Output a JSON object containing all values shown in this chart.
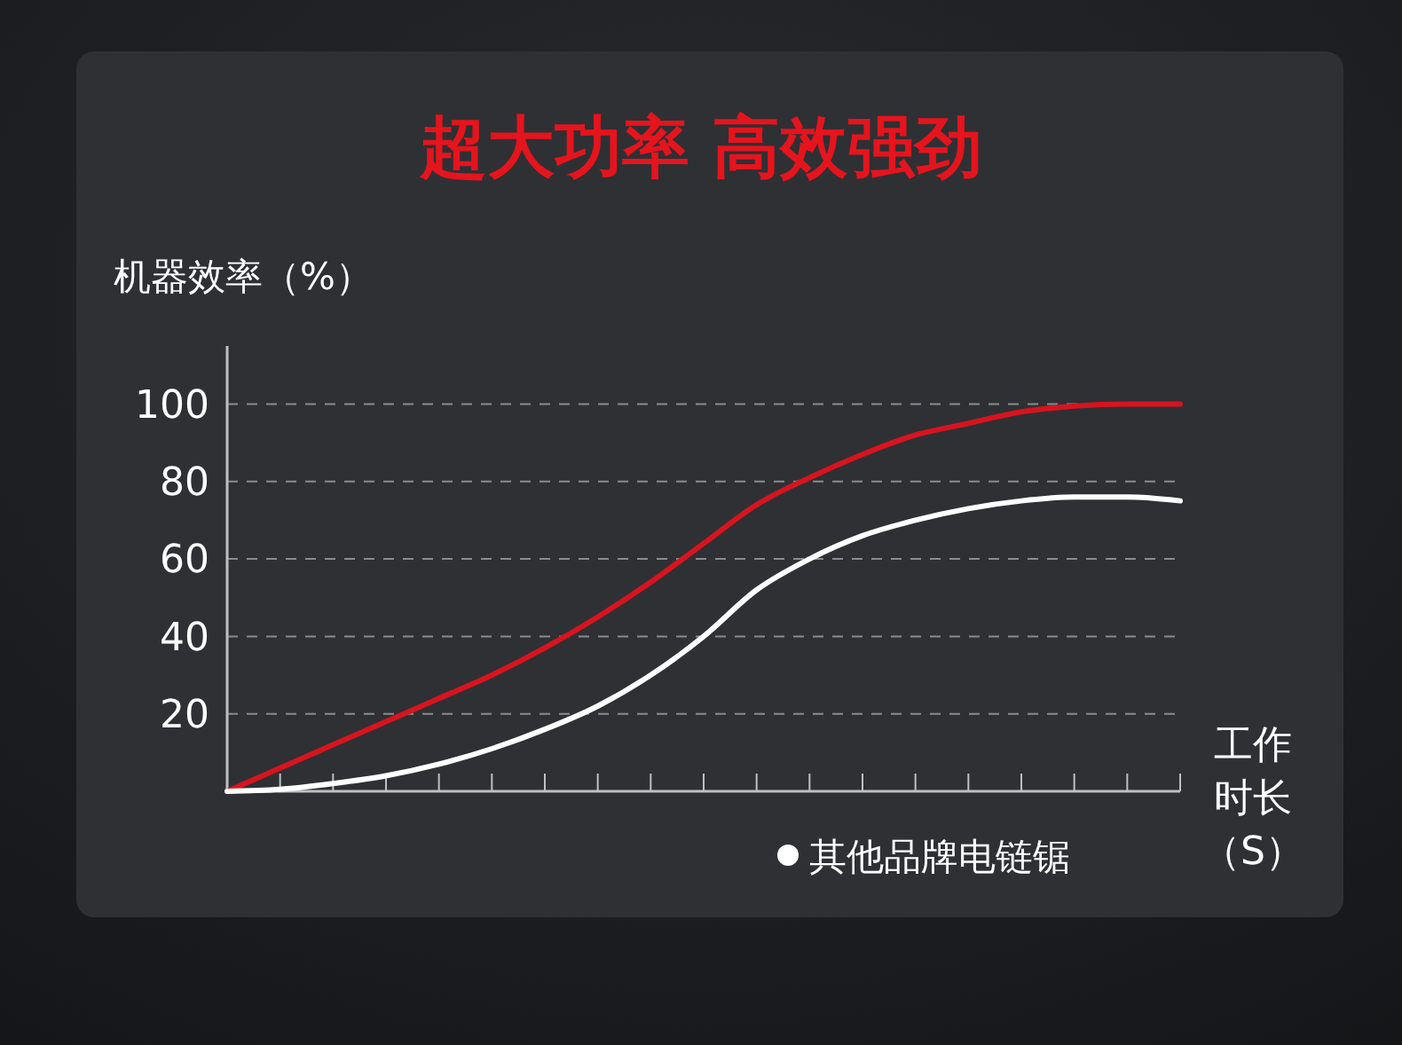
{
  "chart_data": {
    "type": "line",
    "title": "超大功率 高效强劲",
    "ylabel": "机器效率（%）",
    "xlabel": "工作时长（S）",
    "categories": [
      null,
      null,
      null,
      null,
      null,
      null,
      null,
      null,
      null,
      null,
      null,
      null,
      null,
      null,
      null,
      null,
      null,
      null,
      null
    ],
    "series": [
      {
        "color": "#d7141f",
        "values": [
          0,
          6,
          12,
          18,
          24,
          30,
          37,
          45,
          54,
          64,
          74,
          81,
          87,
          92,
          95,
          98,
          99.5,
          100,
          100
        ]
      },
      {
        "name": "其他品牌电链锯",
        "color": "#ffffff",
        "values": [
          0,
          0.5,
          2,
          4,
          7,
          11,
          16,
          22,
          30,
          40,
          52,
          60,
          66,
          70,
          73,
          75,
          76,
          76,
          75
        ]
      }
    ],
    "ylim": [
      0,
      115
    ],
    "yticks": [
      20,
      40,
      60,
      80,
      100
    ],
    "grid": "y",
    "legend": "bottom",
    "marker": "none",
    "line_style": "solid"
  }
}
